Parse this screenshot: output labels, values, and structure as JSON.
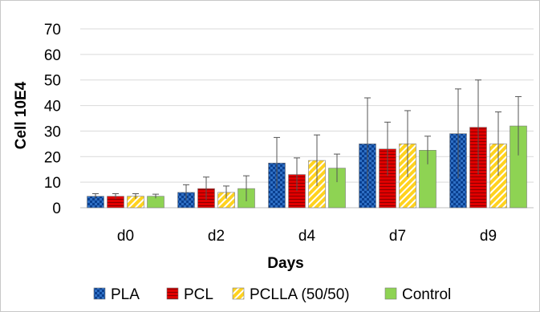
{
  "chart_data": {
    "type": "bar",
    "title": "",
    "xlabel": "Days",
    "ylabel": "Cell 10E4",
    "ylim": [
      0,
      70
    ],
    "yticks": [
      "0",
      "10",
      "20",
      "30",
      "40",
      "50",
      "60",
      "70"
    ],
    "grid": true,
    "legend_position": "bottom",
    "categories": [
      "d0",
      "d2",
      "d4",
      "d7",
      "d9"
    ],
    "series": [
      {
        "name": "PLA",
        "color": "#2e6fc4",
        "pattern": "checker",
        "values": [
          4.5,
          6,
          17.5,
          25,
          29
        ],
        "errors": [
          1,
          3,
          10,
          18,
          17.5
        ]
      },
      {
        "name": "PCL",
        "color": "#e00000",
        "pattern": "hlines",
        "values": [
          4.5,
          7.5,
          13,
          23,
          31.5
        ],
        "errors": [
          1,
          4.5,
          6.5,
          10.5,
          18.5
        ]
      },
      {
        "name": "PCLLA (50/50)",
        "color": "#ffd21f",
        "pattern": "diagonal",
        "values": [
          4.5,
          6,
          18.5,
          25,
          25
        ],
        "errors": [
          1,
          2.5,
          10,
          13,
          12.5
        ]
      },
      {
        "name": "Control",
        "color": "#8ed353",
        "pattern": "solid",
        "values": [
          4.5,
          7.5,
          15.5,
          22.5,
          32
        ],
        "errors": [
          0.8,
          5,
          5.5,
          5.5,
          11.5
        ]
      }
    ]
  }
}
